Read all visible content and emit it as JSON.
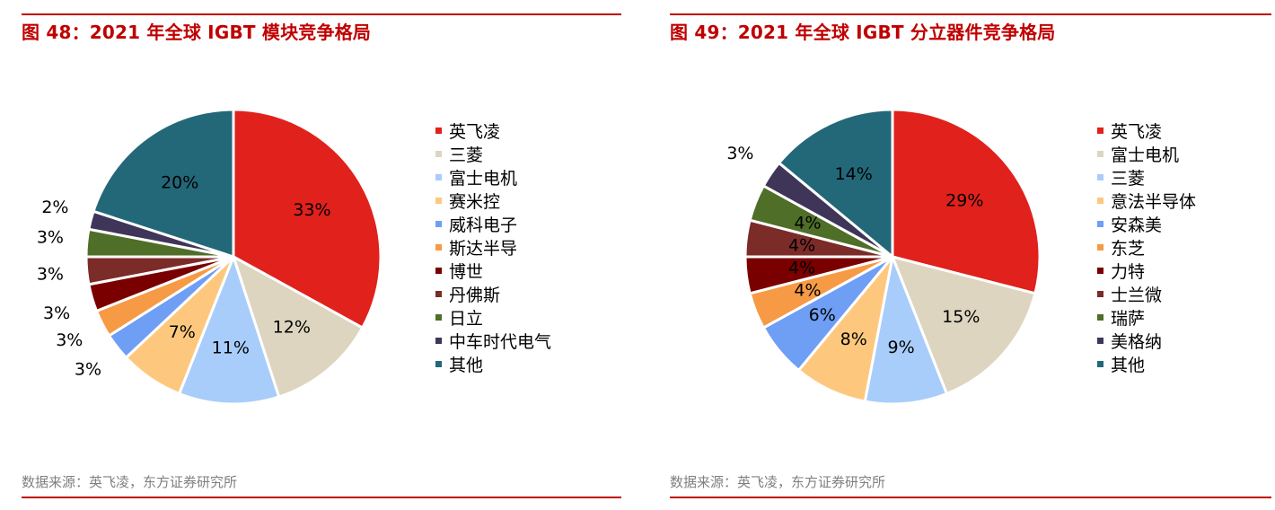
{
  "charts": [
    {
      "title": "图 48：2021 年全球 IGBT 模块竞争格局",
      "source": "数据来源：英飞凌，东方证券研究所",
      "chart_data": {
        "type": "pie",
        "slices": [
          {
            "label": "英飞凌",
            "value": 33,
            "value_label": "33%",
            "color": "#e0211c"
          },
          {
            "label": "三菱",
            "value": 12,
            "value_label": "12%",
            "color": "#ddd5bf"
          },
          {
            "label": "富士电机",
            "value": 11,
            "value_label": "11%",
            "color": "#a8cdfa"
          },
          {
            "label": "赛米控",
            "value": 7,
            "value_label": "7%",
            "color": "#fdc87e"
          },
          {
            "label": "威科电子",
            "value": 3,
            "value_label": "3%",
            "color": "#6f9ef5"
          },
          {
            "label": "斯达半导",
            "value": 3,
            "value_label": "3%",
            "color": "#f79a45"
          },
          {
            "label": "博世",
            "value": 3,
            "value_label": "3%",
            "color": "#7a0000"
          },
          {
            "label": "丹佛斯",
            "value": 3,
            "value_label": "3%",
            "color": "#7b2b28"
          },
          {
            "label": "日立",
            "value": 3,
            "value_label": "3%",
            "color": "#4f6e28"
          },
          {
            "label": "中车时代电气",
            "value": 2,
            "value_label": "2%",
            "color": "#3f3559"
          },
          {
            "label": "其他",
            "value": 20,
            "value_label": "20%",
            "color": "#236879"
          }
        ]
      }
    },
    {
      "title": "图 49：2021 年全球 IGBT 分立器件竞争格局",
      "source": "数据来源：英飞凌，东方证券研究所",
      "chart_data": {
        "type": "pie",
        "slices": [
          {
            "label": "英飞凌",
            "value": 29,
            "value_label": "29%",
            "color": "#e0211c"
          },
          {
            "label": "富士电机",
            "value": 15,
            "value_label": "15%",
            "color": "#ddd5bf"
          },
          {
            "label": "三菱",
            "value": 9,
            "value_label": "9%",
            "color": "#a8cdfa"
          },
          {
            "label": "意法半导体",
            "value": 8,
            "value_label": "8%",
            "color": "#fdc87e"
          },
          {
            "label": "安森美",
            "value": 6,
            "value_label": "6%",
            "color": "#6f9ef5"
          },
          {
            "label": "东芝",
            "value": 4,
            "value_label": "4%",
            "color": "#f79a45"
          },
          {
            "label": "力特",
            "value": 4,
            "value_label": "4%",
            "color": "#7a0000"
          },
          {
            "label": "士兰微",
            "value": 4,
            "value_label": "4%",
            "color": "#7b2b28"
          },
          {
            "label": "瑞萨",
            "value": 4,
            "value_label": "4%",
            "color": "#4f6e28"
          },
          {
            "label": "美格纳",
            "value": 3,
            "value_label": "3%",
            "color": "#3f3559"
          },
          {
            "label": "其他",
            "value": 14,
            "value_label": "14%",
            "color": "#236879"
          }
        ]
      }
    }
  ]
}
